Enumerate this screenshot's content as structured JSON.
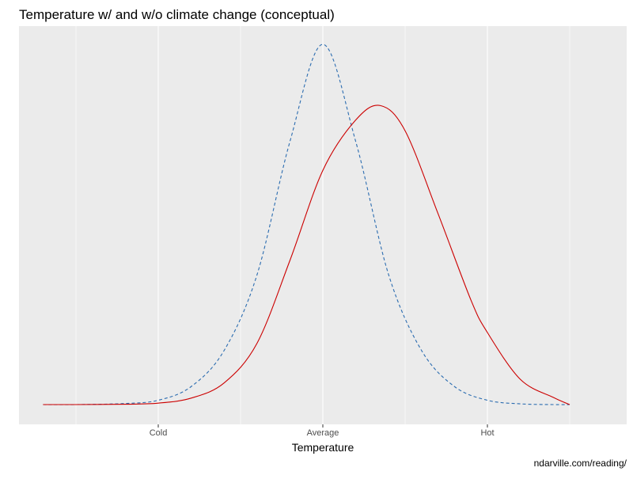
{
  "chart_data": {
    "type": "line",
    "title": "Temperature w/ and w/o climate change (conceptual)",
    "xlabel": "Temperature",
    "ylabel": "",
    "caption": "ndarville.com/reading/",
    "x_ticks": [
      {
        "value": -1,
        "label": "Cold"
      },
      {
        "value": 0,
        "label": "Average"
      },
      {
        "value": 1,
        "label": "Hot"
      }
    ],
    "xlim": [
      -1.7,
      1.55
    ],
    "ylim": [
      -0.05,
      1.05
    ],
    "grid": true,
    "legend": "none",
    "series": [
      {
        "style": "dashed",
        "color": "#2b6cb0",
        "x": [
          -1.7,
          -1.5,
          -1.2,
          -1.0,
          -0.8,
          -0.6,
          -0.4,
          -0.2,
          0.0,
          0.2,
          0.4,
          0.6,
          0.8,
          1.0,
          1.2,
          1.4,
          1.5
        ],
        "y": [
          0.0,
          0.0,
          0.003,
          0.012,
          0.05,
          0.15,
          0.36,
          0.73,
          1.0,
          0.73,
          0.36,
          0.15,
          0.05,
          0.012,
          0.002,
          0.0,
          0.0
        ]
      },
      {
        "style": "solid",
        "color": "#cc0000",
        "x": [
          -1.7,
          -1.5,
          -1.2,
          -1.0,
          -0.8,
          -0.6,
          -0.4,
          -0.2,
          0.0,
          0.2,
          0.35,
          0.5,
          0.7,
          0.9,
          1.0,
          1.2,
          1.4,
          1.5
        ],
        "y": [
          0.0,
          0.0,
          0.001,
          0.004,
          0.018,
          0.06,
          0.17,
          0.4,
          0.65,
          0.79,
          0.83,
          0.76,
          0.53,
          0.29,
          0.2,
          0.07,
          0.02,
          0.0
        ]
      }
    ]
  }
}
